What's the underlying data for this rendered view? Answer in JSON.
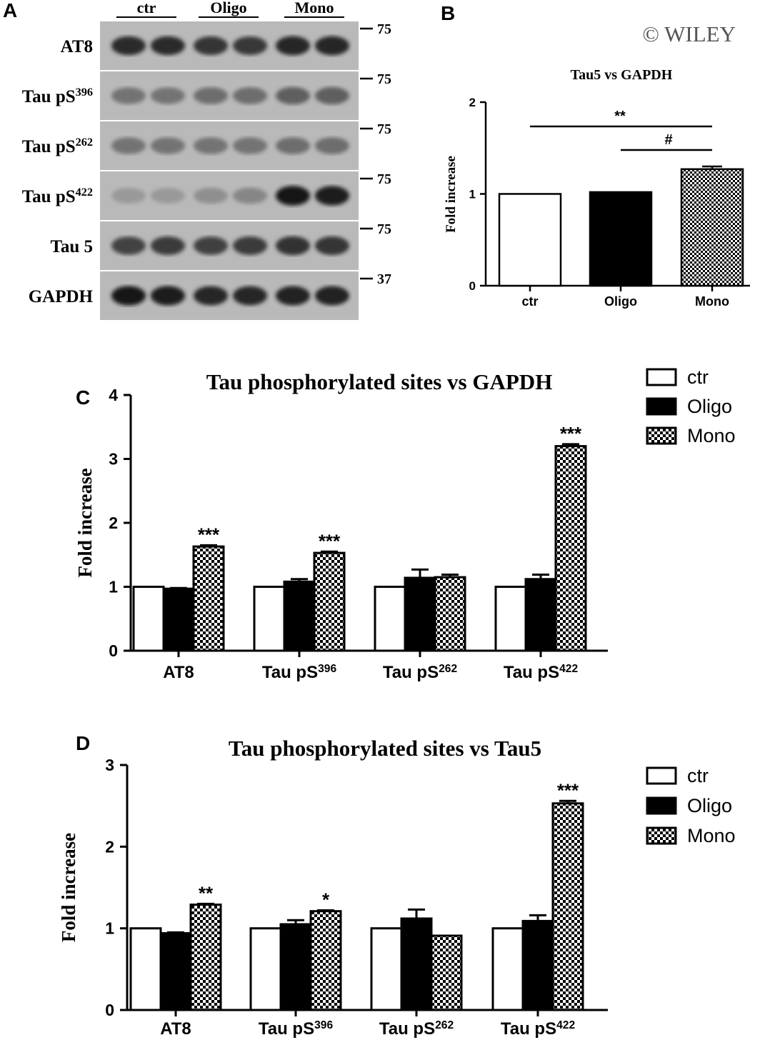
{
  "watermark": "© WILEY",
  "colors": {
    "ctr": "#ffffff",
    "oligo": "#000000",
    "mono": "checker"
  },
  "panel_letters": [
    "A",
    "B",
    "C",
    "D"
  ],
  "panel_a": {
    "groups": [
      "ctr",
      "Oligo",
      "Mono"
    ],
    "rows": [
      {
        "label": "AT8",
        "sup": "",
        "marker": "75"
      },
      {
        "label": "Tau pS",
        "sup": "396",
        "marker": "75"
      },
      {
        "label": "Tau pS",
        "sup": "262",
        "marker": "75"
      },
      {
        "label": "Tau pS",
        "sup": "422",
        "marker": "75"
      },
      {
        "label": "Tau 5",
        "sup": "",
        "marker": "75"
      },
      {
        "label": "GAPDH",
        "sup": "",
        "marker": "37"
      }
    ],
    "band_intensity": [
      [
        0.82,
        0.82,
        0.78,
        0.76,
        0.86,
        0.86
      ],
      [
        0.45,
        0.45,
        0.48,
        0.48,
        0.55,
        0.55
      ],
      [
        0.45,
        0.45,
        0.45,
        0.45,
        0.48,
        0.48
      ],
      [
        0.25,
        0.25,
        0.3,
        0.35,
        0.95,
        0.9
      ],
      [
        0.7,
        0.75,
        0.72,
        0.75,
        0.8,
        0.78
      ],
      [
        0.92,
        0.9,
        0.85,
        0.85,
        0.88,
        0.88
      ]
    ]
  },
  "chart_data": [
    {
      "panel": "B",
      "type": "bar",
      "title": "Tau5 vs GAPDH",
      "ylabel": "Fold increase",
      "ylim": [
        0,
        2
      ],
      "yticks": [
        "0",
        "1",
        "2"
      ],
      "categories": [
        "ctr",
        "Oligo",
        "Mono"
      ],
      "values": [
        1.0,
        1.02,
        1.27
      ],
      "errors": [
        0,
        0,
        0.03
      ],
      "fills": [
        "ctr",
        "oligo",
        "mono"
      ],
      "brackets": [
        {
          "from": 0,
          "to": 2,
          "label": "**"
        },
        {
          "from": 1,
          "to": 2,
          "label": "#"
        }
      ]
    },
    {
      "panel": "C",
      "type": "bar",
      "title": "Tau phosphorylated sites vs GAPDH",
      "ylabel": "Fold increase",
      "ylim": [
        0,
        4
      ],
      "yticks": [
        "0",
        "1",
        "2",
        "3",
        "4"
      ],
      "categories": [
        {
          "label": "AT8",
          "sup": ""
        },
        {
          "label": "Tau pS",
          "sup": "396"
        },
        {
          "label": "Tau pS",
          "sup": "262"
        },
        {
          "label": "Tau pS",
          "sup": "422"
        }
      ],
      "legend": {
        "entries": [
          "ctr",
          "Oligo",
          "Mono"
        ],
        "position": "top-right"
      },
      "series": [
        {
          "name": "ctr",
          "fill": "ctr",
          "values": [
            1.0,
            1.0,
            1.0,
            1.0
          ],
          "errors": [
            0,
            0,
            0,
            0
          ]
        },
        {
          "name": "Oligo",
          "fill": "oligo",
          "values": [
            0.97,
            1.08,
            1.14,
            1.12
          ],
          "errors": [
            0.01,
            0.04,
            0.13,
            0.07
          ]
        },
        {
          "name": "Mono",
          "fill": "mono",
          "values": [
            1.63,
            1.53,
            1.15,
            3.2
          ],
          "errors": [
            0.02,
            0.02,
            0.04,
            0.03
          ]
        }
      ],
      "annotations": [
        "***",
        "***",
        "",
        "***"
      ]
    },
    {
      "panel": "D",
      "type": "bar",
      "title": "Tau phosphorylated sites vs Tau5",
      "ylabel": "Fold increase",
      "ylim": [
        0,
        3
      ],
      "yticks": [
        "0",
        "1",
        "2",
        "3"
      ],
      "categories": [
        {
          "label": "AT8",
          "sup": ""
        },
        {
          "label": "Tau pS",
          "sup": "396"
        },
        {
          "label": "Tau pS",
          "sup": "262"
        },
        {
          "label": "Tau pS",
          "sup": "422"
        }
      ],
      "legend": {
        "entries": [
          "ctr",
          "Oligo",
          "Mono"
        ],
        "position": "top-right"
      },
      "series": [
        {
          "name": "ctr",
          "fill": "ctr",
          "values": [
            1.0,
            1.0,
            1.0,
            1.0
          ],
          "errors": [
            0,
            0,
            0,
            0
          ]
        },
        {
          "name": "Oligo",
          "fill": "oligo",
          "values": [
            0.94,
            1.05,
            1.12,
            1.09
          ],
          "errors": [
            0.01,
            0.05,
            0.11,
            0.07
          ]
        },
        {
          "name": "Mono",
          "fill": "mono",
          "values": [
            1.29,
            1.21,
            0.91,
            2.53
          ],
          "errors": [
            0.01,
            0.01,
            0,
            0.03
          ]
        }
      ],
      "annotations": [
        "**",
        "*",
        "",
        "***"
      ]
    }
  ]
}
